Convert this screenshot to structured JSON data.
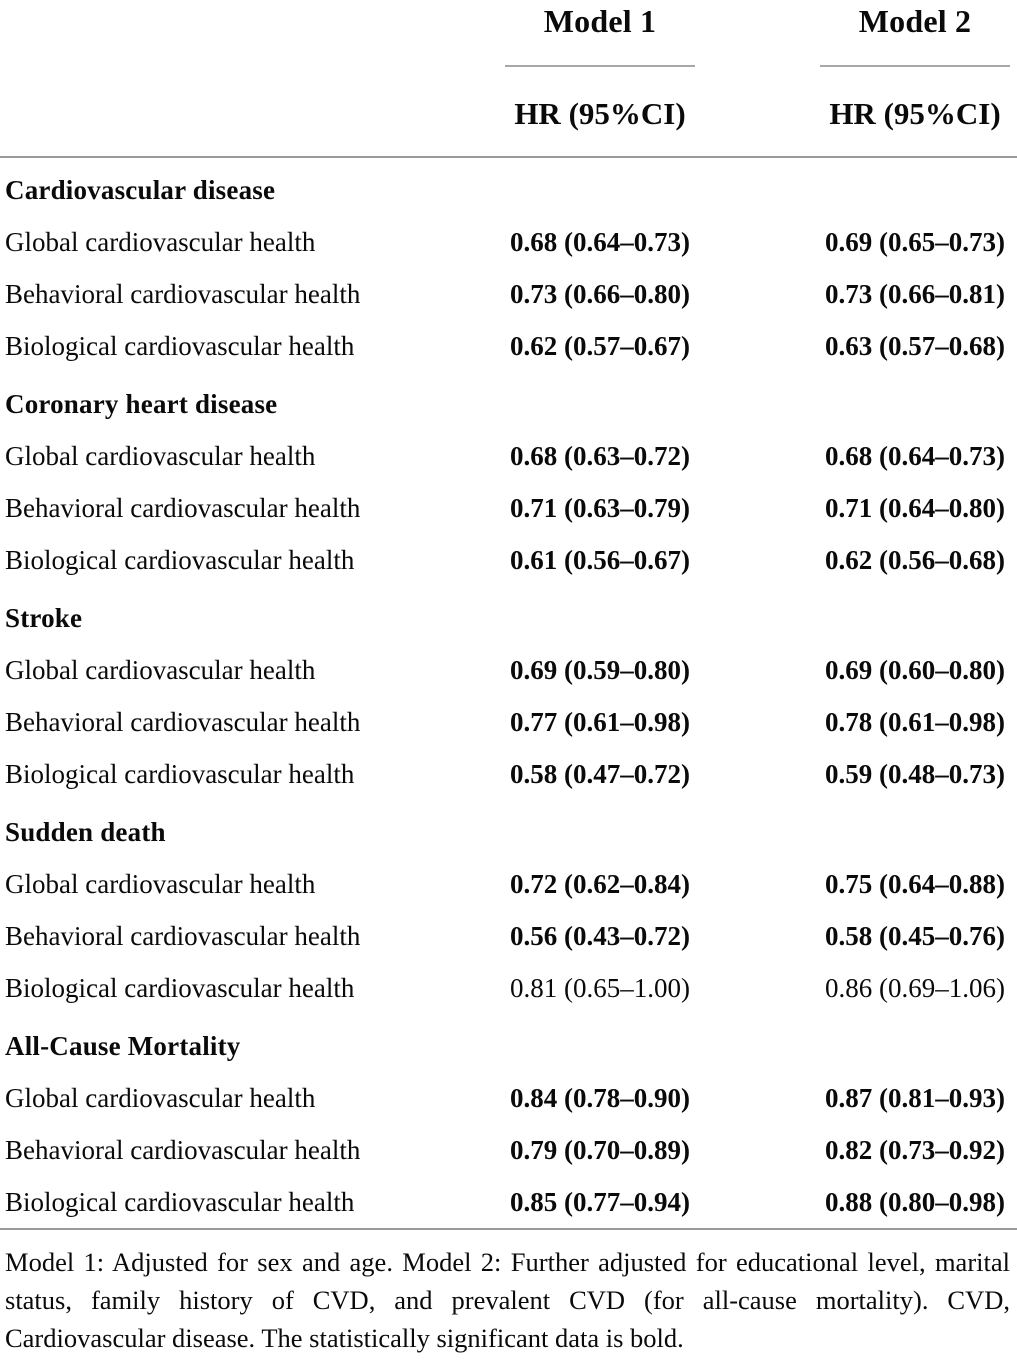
{
  "table": {
    "header": {
      "model1": "Model 1",
      "model2": "Model 2",
      "sub1": "HR (95%CI)",
      "sub2": "HR (95%CI)"
    },
    "sections": [
      {
        "title": "Cardiovascular disease",
        "rows": [
          {
            "label": "Global cardiovascular health",
            "model1": "0.68 (0.64–0.73)",
            "bold1": true,
            "model2": "0.69 (0.65–0.73)",
            "bold2": true
          },
          {
            "label": "Behavioral cardiovascular health",
            "model1": "0.73 (0.66–0.80)",
            "bold1": true,
            "model2": "0.73 (0.66–0.81)",
            "bold2": true
          },
          {
            "label": "Biological cardiovascular health",
            "model1": "0.62 (0.57–0.67)",
            "bold1": true,
            "model2": "0.63 (0.57–0.68)",
            "bold2": true
          }
        ]
      },
      {
        "title": "Coronary heart disease",
        "rows": [
          {
            "label": "Global cardiovascular health",
            "model1": "0.68 (0.63–0.72)",
            "bold1": true,
            "model2": "0.68 (0.64–0.73)",
            "bold2": true
          },
          {
            "label": "Behavioral cardiovascular health",
            "model1": "0.71 (0.63–0.79)",
            "bold1": true,
            "model2": "0.71 (0.64–0.80)",
            "bold2": true
          },
          {
            "label": "Biological cardiovascular health",
            "model1": "0.61 (0.56–0.67)",
            "bold1": true,
            "model2": "0.62 (0.56–0.68)",
            "bold2": true
          }
        ]
      },
      {
        "title": "Stroke",
        "rows": [
          {
            "label": "Global cardiovascular health",
            "model1": "0.69 (0.59–0.80)",
            "bold1": true,
            "model2": "0.69 (0.60–0.80)",
            "bold2": true
          },
          {
            "label": "Behavioral cardiovascular health",
            "model1": "0.77 (0.61–0.98)",
            "bold1": true,
            "model2": "0.78 (0.61–0.98)",
            "bold2": true
          },
          {
            "label": "Biological cardiovascular health",
            "model1": "0.58 (0.47–0.72)",
            "bold1": true,
            "model2": "0.59 (0.48–0.73)",
            "bold2": true
          }
        ]
      },
      {
        "title": "Sudden death",
        "rows": [
          {
            "label": "Global cardiovascular health",
            "model1": "0.72 (0.62–0.84)",
            "bold1": true,
            "model2": "0.75 (0.64–0.88)",
            "bold2": true
          },
          {
            "label": "Behavioral cardiovascular health",
            "model1": "0.56 (0.43–0.72)",
            "bold1": true,
            "model2": "0.58 (0.45–0.76)",
            "bold2": true
          },
          {
            "label": "Biological cardiovascular health",
            "model1": "0.81 (0.65–1.00)",
            "bold1": false,
            "model2": "0.86 (0.69–1.06)",
            "bold2": false
          }
        ]
      },
      {
        "title": "All-Cause Mortality",
        "rows": [
          {
            "label": "Global cardiovascular health",
            "model1": "0.84 (0.78–0.90)",
            "bold1": true,
            "model2": "0.87 (0.81–0.93)",
            "bold2": true
          },
          {
            "label": "Behavioral cardiovascular health",
            "model1": "0.79 (0.70–0.89)",
            "bold1": true,
            "model2": "0.82 (0.73–0.92)",
            "bold2": true
          },
          {
            "label": "Biological cardiovascular health",
            "model1": "0.85 (0.77–0.94)",
            "bold1": true,
            "model2": "0.88 (0.80–0.98)",
            "bold2": true
          }
        ]
      }
    ],
    "footnote": "Model 1: Adjusted for sex and age. Model 2: Further adjusted for educational level, marital status, family history of CVD, and prevalent CVD (for all-cause mortality). CVD, Cardiovascular disease. The statistically significant data is bold."
  },
  "colors": {
    "text": "#0a0a0a",
    "rule": "#9a9a9a",
    "rule_light": "#a8a8a8",
    "background": "#ffffff"
  }
}
